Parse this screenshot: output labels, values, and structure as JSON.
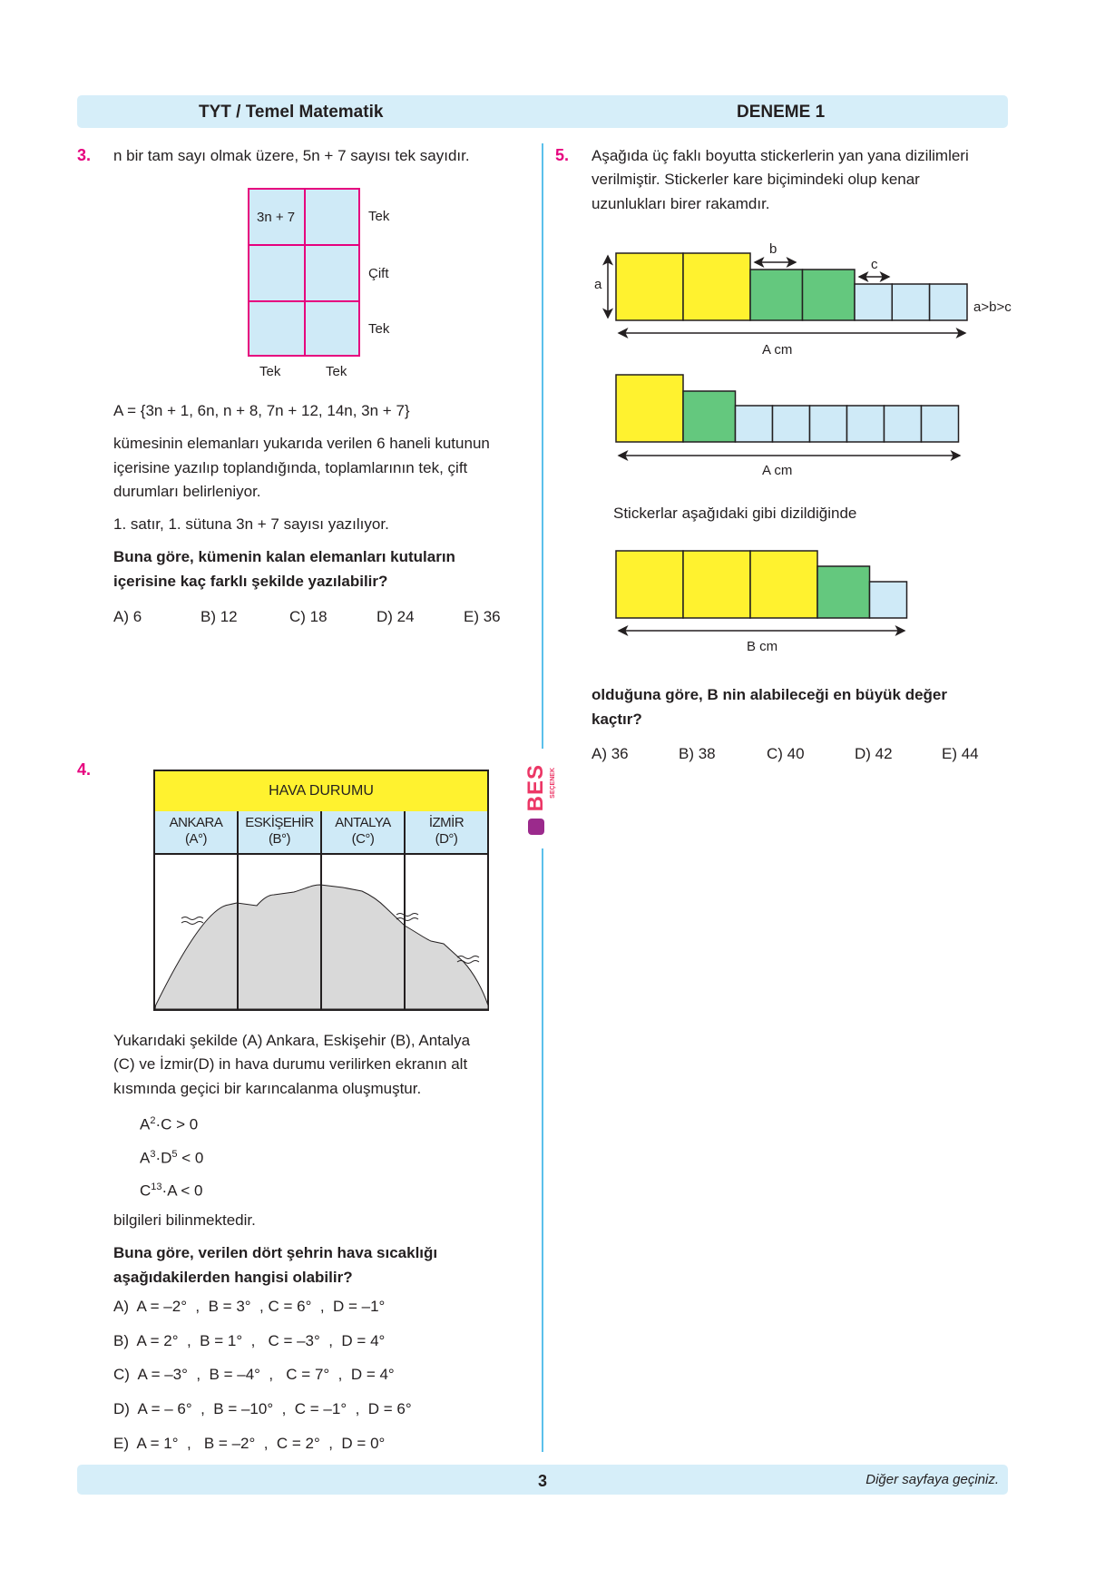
{
  "header": {
    "subject": "TYT / Temel Matematik",
    "exam": "DENEME 1"
  },
  "colors": {
    "band": "#d6eef9",
    "accent": "#e6007e",
    "divider": "#5bc0eb",
    "yellow": "#fff22f",
    "green": "#64c87e",
    "blue": "#cfeaf7"
  },
  "q3": {
    "number": "3.",
    "intro": "n bir tam sayı olmak üzere, 5n + 7 sayısı tek sayıdır.",
    "grid": {
      "cell_1_1": "3n + 7",
      "row_labels": [
        "Tek",
        "Çift",
        "Tek"
      ],
      "col_labels": [
        "Tek",
        "Tek"
      ]
    },
    "set": "A = {3n  + 1, 6n, n + 8, 7n + 12, 14n, 3n + 7}",
    "body": [
      "kümesinin elemanları yukarıda verilen 6 haneli kutunun",
      "içerisine yazılıp toplandığında, toplamlarının tek, çift",
      "durumları belirleniyor."
    ],
    "given": "1. satır, 1. sütuna 3n + 7 sayısı yazılıyor.",
    "question": [
      "Buna göre, kümenin kalan elemanları kutuların",
      "içerisine kaç farklı şekilde yazılabilir?"
    ],
    "options": [
      "A) 6",
      "B) 12",
      "C) 18",
      "D) 24",
      "E) 36"
    ]
  },
  "q4": {
    "number": "4.",
    "table": {
      "title": "HAVA DURUMU",
      "cities": [
        {
          "name": "ANKARA",
          "unit": "(A°)"
        },
        {
          "name": "ESKİŞEHİR",
          "unit": "(B°)"
        },
        {
          "name": "ANTALYA",
          "unit": "(C°)"
        },
        {
          "name": "İZMİR",
          "unit": "(D°)"
        }
      ]
    },
    "body": [
      "Yukarıdaki şekilde (A) Ankara, Eskişehir (B), Antalya",
      "(C) ve İzmir(D) in hava durumu verilirken ekranın alt",
      "kısmında geçici bir karıncalanma oluşmuştur."
    ],
    "conditions": [
      {
        "a": "A",
        "ae": "2",
        "b": "·C",
        "be": "",
        "rest": " > 0"
      },
      {
        "a": "A",
        "ae": "3",
        "b": "·D",
        "be": "5",
        "rest": " < 0"
      },
      {
        "a": "C",
        "ae": "13",
        "b": "·A",
        "be": "",
        "rest": " < 0"
      }
    ],
    "after": "bilgileri bilinmektedir.",
    "question": [
      "Buna göre, verilen dört şehrin hava sıcaklığı",
      "aşağıdakilerden hangisi olabilir?"
    ],
    "options": [
      "A)  A = –2°  ,  B = 3°  , C = 6°  ,  D = –1°",
      "B)  A = 2°  ,  B = 1°  ,   C = –3°  ,  D = 4°",
      "C)  A = –3°  ,  B = –4°  ,   C = 7°  ,  D = 4°",
      "D)  A = – 6°  ,  B = –10°  ,  C = –1°  ,  D = 6°",
      "E)  A = 1°  ,   B = –2°  ,  C = 2°  ,  D = 0°"
    ]
  },
  "q5": {
    "number": "5.",
    "intro": [
      "Aşağıda üç faklı boyutta stickerlerin yan yana dizilimleri",
      "verilmiştir. Stickerler kare biçimindeki olup kenar",
      "uzunlukları birer rakamdır."
    ],
    "labels": {
      "a": "a",
      "b": "b",
      "c": "c",
      "relation": "a>b>c",
      "len1": "A cm",
      "len2": "A cm",
      "len3": "B cm"
    },
    "middle": "Stickerlar aşağıdaki gibi dizildiğinde",
    "question": [
      "olduğuna göre, B nin alabileceği en büyük değer",
      "kaçtır?"
    ],
    "options": [
      "A) 36",
      "B) 38",
      "C) 40",
      "D) 42",
      "E) 44"
    ]
  },
  "logo": {
    "text": "BES",
    "sub": "SEÇENEK"
  },
  "footer": {
    "page": "3",
    "note": "Diğer sayfaya geçiniz."
  }
}
